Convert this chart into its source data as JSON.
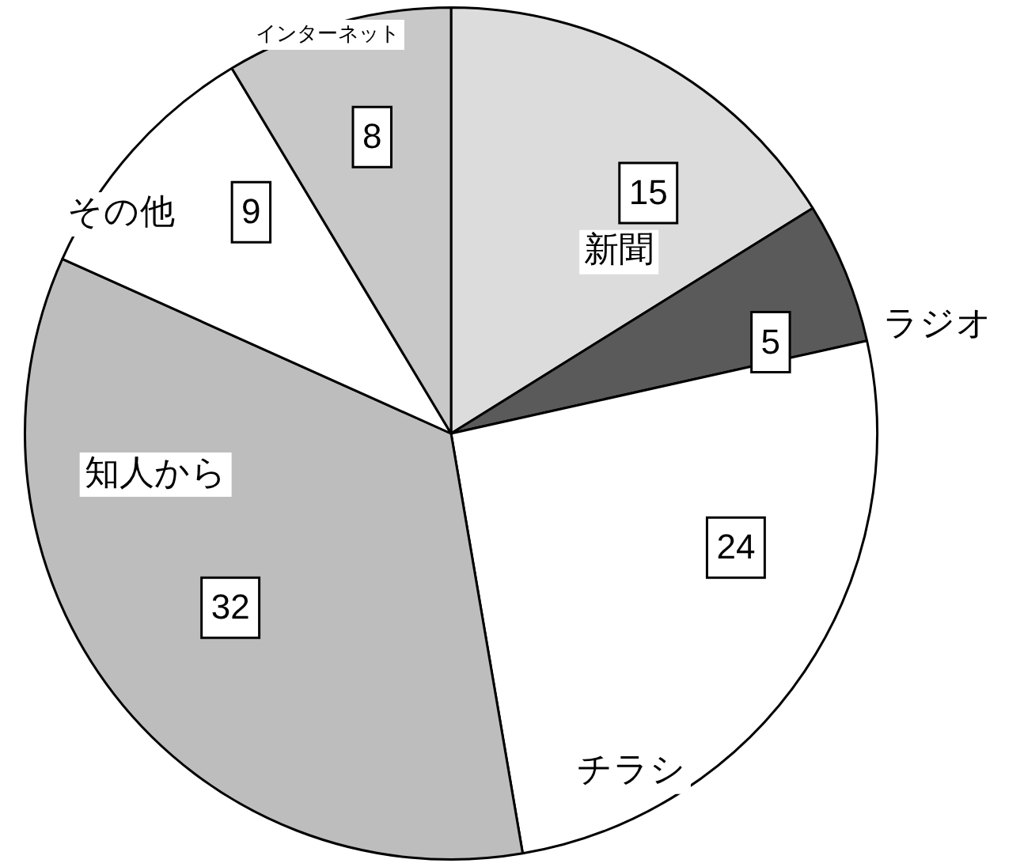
{
  "chart_data": {
    "type": "pie",
    "categories": [
      "新聞",
      "ラジオ",
      "チラシ",
      "知人から",
      "その他",
      "インターネット"
    ],
    "values": [
      15,
      5,
      24,
      32,
      9,
      8
    ],
    "colors": [
      "#dcdcdc",
      "#5a5a5a",
      "#ffffff",
      "#bdbdbd",
      "#ffffff",
      "#c8c8c8"
    ],
    "data_labels": true
  }
}
